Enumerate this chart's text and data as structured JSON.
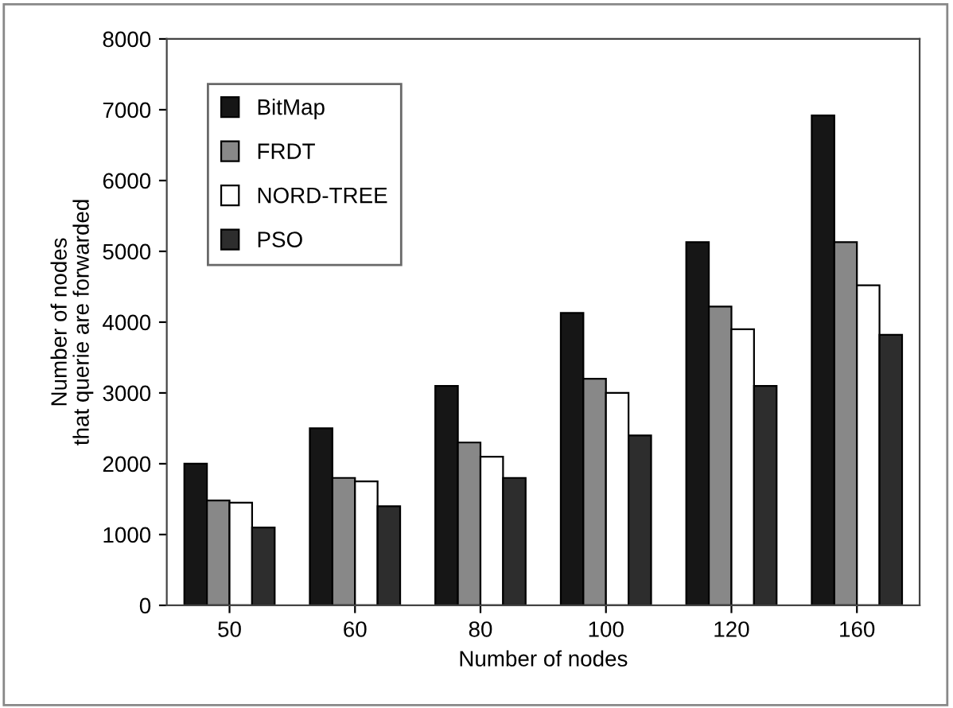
{
  "chart_data": {
    "type": "bar",
    "xlabel": "Number of nodes",
    "ylabel": "Number of nodes\nthat querie are forwarded",
    "categories": [
      "50",
      "60",
      "80",
      "100",
      "120",
      "160"
    ],
    "series": [
      {
        "name": "BitMap",
        "color": "#161616",
        "values": [
          2000,
          2500,
          3100,
          4130,
          5130,
          6920
        ]
      },
      {
        "name": "FRDT",
        "color": "#888888",
        "values": [
          1480,
          1800,
          2300,
          3200,
          4220,
          5130
        ]
      },
      {
        "name": "NORD-TREE",
        "color": "#ffffff",
        "values": [
          1450,
          1750,
          2100,
          3000,
          3900,
          4520
        ]
      },
      {
        "name": "PSO",
        "color": "#2d2d2d",
        "values": [
          1100,
          1400,
          1800,
          2400,
          3100,
          3820
        ]
      }
    ],
    "ylim": [
      0,
      8000
    ],
    "yticks": [
      0,
      1000,
      2000,
      3000,
      4000,
      5000,
      6000,
      7000,
      8000
    ],
    "grid": false,
    "legend": "top left"
  }
}
